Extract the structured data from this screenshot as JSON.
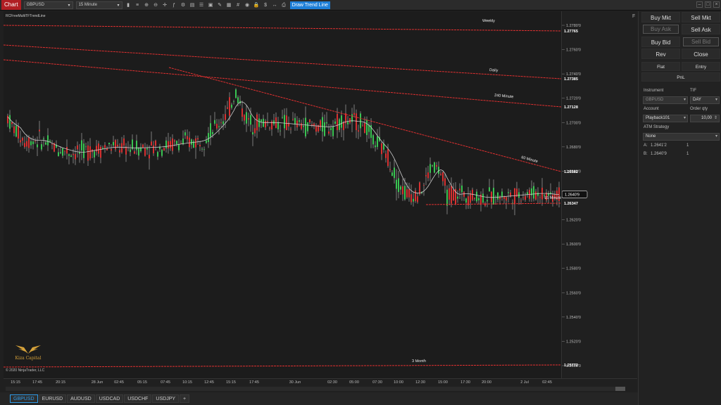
{
  "toolbar": {
    "chart_tab": "Chart",
    "instrument": "GBPUSD",
    "interval": "15 Minute",
    "active_tool": "Draw Trend Line",
    "icons": [
      "bar-type-icon",
      "chart-style-icon",
      "zoom-in-icon",
      "zoom-out-icon",
      "crosshair-icon",
      "indicators-icon",
      "strategies-icon",
      "data-box-icon",
      "properties-icon",
      "templates-icon",
      "drawing-tools-icon",
      "layout-icon",
      "grid-icon",
      "snapshot-icon",
      "lock-icon",
      "chart-trader-icon",
      "scroll-icon",
      "print-icon"
    ]
  },
  "chart": {
    "indicator_label": "RCFreeMultiTFTrendLine",
    "copyright": "© 2020 NinjaTrader, LLC",
    "logo_text": "Kiza Capital",
    "last_price": "1.2640'9",
    "price_ticks": [
      "1.2780'0",
      "1.2760'0",
      "1.2740'0",
      "1.2720'0",
      "1.2700'0",
      "1.2680'0",
      "1.2660'0",
      "1.2640'0",
      "1.2620'0",
      "1.2600'0",
      "1.2580'0",
      "1.2560'0",
      "1.2540'0",
      "1.2520'0",
      "1.2500'0"
    ],
    "time_ticks": [
      "15:15",
      "17:45",
      "20:15",
      "28 Jun",
      "02:45",
      "05:15",
      "07:45",
      "10:15",
      "12:45",
      "15:15",
      "17:45",
      "30 Jun",
      "02:30",
      "05:00",
      "07:30",
      "10:00",
      "12:30",
      "15:00",
      "17:30",
      "20:00",
      "2 Jul",
      "02:45"
    ],
    "trendlines": [
      {
        "label": "Weekly",
        "price": "1.27765",
        "color": "#e03030"
      },
      {
        "label": "Daily",
        "price": "1.27385",
        "color": "#e03030"
      },
      {
        "label": "240 Minute",
        "price": "1.27128",
        "color": "#e03030"
      },
      {
        "label": "60 Minute",
        "price": "1.26582",
        "color": "#e03030"
      },
      {
        "label": "15 Minute",
        "price": "1.26347",
        "color": "#e03030"
      },
      {
        "label": "3 Month",
        "price": "1.25772",
        "color": "#e03030"
      }
    ],
    "colors": {
      "up": "#39c452",
      "down": "#d83030",
      "sma": "#cccccc",
      "line": "#e02020"
    }
  },
  "bottom_tabs": [
    "GBPUSD",
    "EURUSD",
    "AUDUSD",
    "USDCAD",
    "USDCHF",
    "USDJPY",
    "+"
  ],
  "chart_trader": {
    "buttons": {
      "buy_mkt": "Buy Mkt",
      "sell_mkt": "Sell Mkt",
      "buy_ask": "Buy Ask",
      "sell_ask": "Sell Ask",
      "buy_bid": "Buy Bid",
      "sell_bid": "Sell Bid",
      "rev": "Rev",
      "close": "Close",
      "flat": "Flat",
      "entry": "Entry",
      "pnl": "PnL"
    },
    "instrument_label": "Instrument",
    "instrument_value": "GBPUSD",
    "tif_label": "TIF",
    "tif_value": "DAY",
    "account_label": "Account",
    "account_value": "Playback101",
    "order_qty_label": "Order qty",
    "order_qty_value": "10,00",
    "atm_label": "ATM Strategy",
    "atm_value": "None",
    "ask_label": "A:",
    "ask_price": "1.2641'2",
    "ask_size": "1",
    "bid_label": "B:",
    "bid_price": "1.2640'9",
    "bid_size": "1",
    "f_label": "F"
  }
}
